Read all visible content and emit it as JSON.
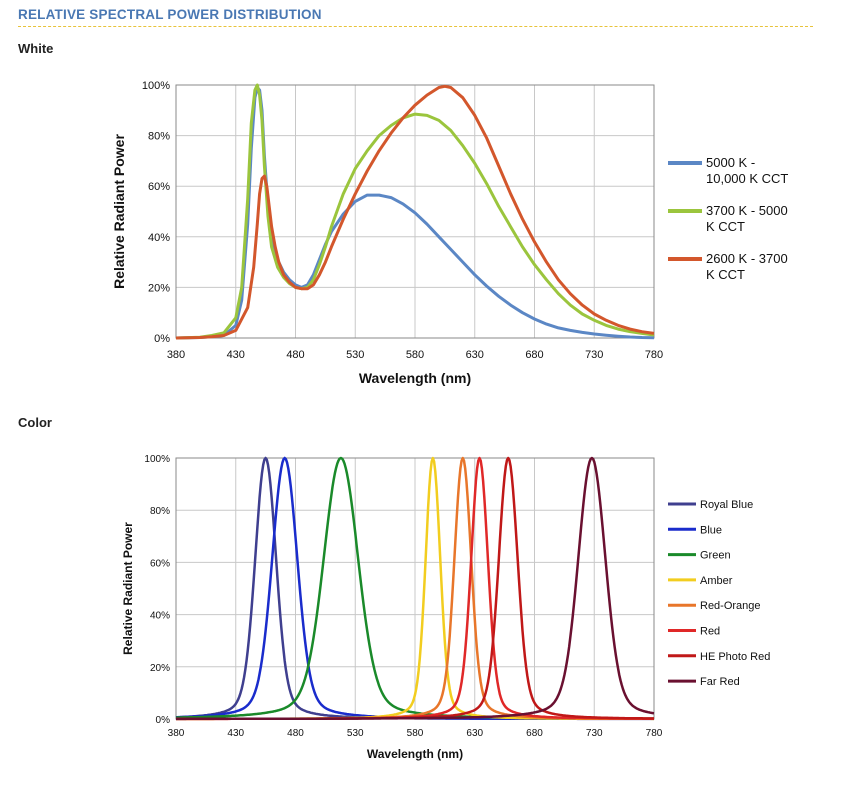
{
  "header": {
    "title": "RELATIVE SPECTRAL POWER DISTRIBUTION"
  },
  "sections": {
    "white": "White",
    "color": "Color"
  },
  "chart_data": [
    {
      "type": "line",
      "xlabel": "Wavelength (nm)",
      "ylabel": "Relative Radiant Power",
      "xlim": [
        380,
        780
      ],
      "ylim": [
        0,
        100
      ],
      "xticks": [
        "380",
        "430",
        "480",
        "530",
        "580",
        "630",
        "680",
        "730",
        "780"
      ],
      "yticks": [
        "0%",
        "20%",
        "40%",
        "60%",
        "80%",
        "100%"
      ],
      "grid": true,
      "legend_position": "right",
      "series": [
        {
          "name": "5000 K - 10,000 K CCT",
          "name_lines": [
            "5000 K -",
            "10,000 K CCT"
          ],
          "color": "#5b87c5",
          "x": [
            380,
            400,
            410,
            420,
            430,
            435,
            440,
            443,
            446,
            448,
            450,
            452,
            454,
            457,
            460,
            465,
            470,
            475,
            480,
            485,
            490,
            495,
            500,
            505,
            510,
            520,
            530,
            540,
            550,
            560,
            570,
            580,
            590,
            600,
            610,
            620,
            630,
            640,
            650,
            660,
            670,
            680,
            690,
            700,
            710,
            720,
            730,
            740,
            750,
            760,
            770,
            780
          ],
          "y": [
            0,
            0.2,
            0.5,
            1,
            5,
            15,
            45,
            75,
            95,
            99,
            98,
            90,
            72,
            52,
            40,
            31,
            26,
            23,
            21,
            20,
            21,
            25,
            31,
            37,
            42,
            49,
            54,
            56.5,
            56.5,
            55.5,
            53,
            49.5,
            45,
            40,
            35,
            30,
            25,
            20.5,
            16.5,
            13,
            10,
            7.5,
            5.5,
            4,
            3,
            2.2,
            1.6,
            1.1,
            0.7,
            0.4,
            0.2,
            0.1
          ]
        },
        {
          "name": "3700 K - 5000 K CCT",
          "name_lines": [
            "3700 K - 5000",
            "K CCT"
          ],
          "color": "#9bc53d",
          "x": [
            380,
            400,
            410,
            420,
            430,
            435,
            440,
            443,
            446,
            448,
            450,
            452,
            454,
            457,
            460,
            465,
            470,
            475,
            480,
            485,
            490,
            495,
            500,
            505,
            510,
            520,
            530,
            540,
            550,
            560,
            570,
            580,
            590,
            600,
            610,
            620,
            630,
            640,
            650,
            660,
            670,
            680,
            690,
            700,
            710,
            720,
            730,
            740,
            750,
            760,
            770,
            780
          ],
          "y": [
            0,
            0.3,
            1,
            2,
            8,
            20,
            55,
            85,
            98,
            100,
            96,
            86,
            68,
            48,
            36,
            28,
            24,
            21.5,
            20,
            19.5,
            20,
            23,
            29,
            36,
            44,
            57,
            67,
            74,
            80,
            84,
            87,
            88.5,
            88,
            86,
            82,
            76,
            69,
            61,
            52,
            44,
            36,
            29,
            23,
            17.5,
            13,
            9.5,
            7,
            5,
            3.5,
            2.5,
            1.8,
            1.2
          ]
        },
        {
          "name": "2600 K - 3700 K CCT",
          "name_lines": [
            "2600 K - 3700",
            "K CCT"
          ],
          "color": "#d3572c",
          "x": [
            380,
            400,
            410,
            420,
            430,
            440,
            445,
            448,
            450,
            452,
            454,
            456,
            458,
            460,
            463,
            466,
            470,
            475,
            480,
            485,
            490,
            495,
            500,
            505,
            510,
            520,
            530,
            540,
            550,
            560,
            570,
            580,
            590,
            600,
            605,
            610,
            620,
            630,
            640,
            650,
            660,
            670,
            680,
            690,
            700,
            710,
            720,
            730,
            740,
            750,
            760,
            770,
            780
          ],
          "y": [
            0,
            0.2,
            0.5,
            1,
            3,
            12,
            28,
            45,
            57,
            63,
            64,
            60,
            52,
            44,
            36,
            30,
            25,
            22,
            20,
            19.5,
            19.5,
            21,
            25,
            30,
            36,
            47,
            57,
            66,
            74,
            81,
            87,
            92,
            96,
            99,
            99.5,
            99,
            95,
            88,
            79,
            68,
            57,
            47,
            38,
            30,
            23,
            17.5,
            13,
            9.5,
            7,
            5,
            3.5,
            2.5,
            1.8
          ]
        }
      ]
    },
    {
      "type": "line",
      "xlabel": "Wavelength (nm)",
      "ylabel": "Relative Radiant Power",
      "xlim": [
        380,
        780
      ],
      "ylim": [
        0,
        100
      ],
      "xticks": [
        "380",
        "430",
        "480",
        "530",
        "580",
        "630",
        "680",
        "730",
        "780"
      ],
      "yticks": [
        "0%",
        "20%",
        "40%",
        "60%",
        "80%",
        "100%"
      ],
      "grid": true,
      "legend_position": "right",
      "series": [
        {
          "name": "Royal Blue",
          "color": "#3f3f8f",
          "peak": 455,
          "fwhm": 20
        },
        {
          "name": "Blue",
          "color": "#1a2ccc",
          "peak": 471,
          "fwhm": 24
        },
        {
          "name": "Green",
          "color": "#1a8a2a",
          "peak": 518,
          "fwhm": 33
        },
        {
          "name": "Amber",
          "color": "#f2cd1f",
          "peak": 595,
          "fwhm": 14
        },
        {
          "name": "Red-Orange",
          "color": "#e8762a",
          "peak": 620,
          "fwhm": 16
        },
        {
          "name": "Red",
          "color": "#e02828",
          "peak": 634,
          "fwhm": 16
        },
        {
          "name": "HE Photo Red",
          "color": "#c01818",
          "peak": 658,
          "fwhm": 18
        },
        {
          "name": "Far Red",
          "color": "#6a1030",
          "peak": 728,
          "fwhm": 26
        }
      ]
    }
  ]
}
